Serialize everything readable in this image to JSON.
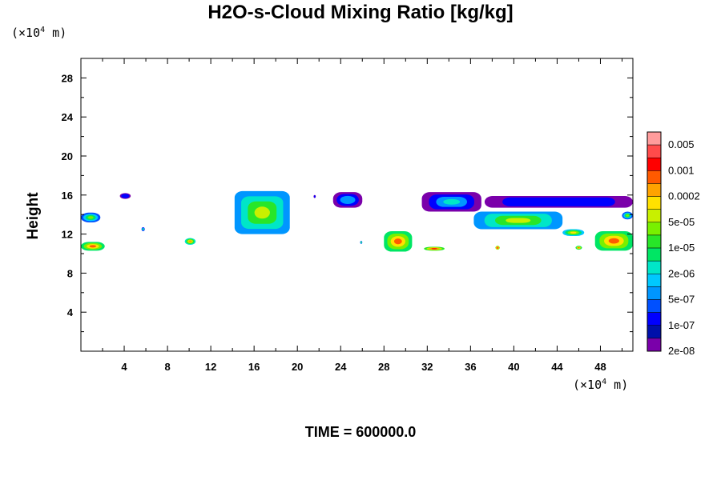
{
  "chart_data": {
    "type": "heatmap",
    "title": "H2O-s-Cloud Mixing Ratio [kg/kg]",
    "ylabel": "Height",
    "x_unit": {
      "prefix": "(×10",
      "exp": "4",
      "suffix": " m)"
    },
    "y_unit": {
      "prefix": "(×10",
      "exp": "4",
      "suffix": " m)"
    },
    "xlim": [
      0,
      51
    ],
    "ylim": [
      0,
      30
    ],
    "x_ticks": [
      4,
      8,
      12,
      16,
      20,
      24,
      28,
      32,
      36,
      40,
      44,
      48
    ],
    "x_tick_labels": [
      "4",
      "8",
      "12",
      "16",
      "20",
      "24",
      "28",
      "32",
      "36",
      "40",
      "44",
      "48"
    ],
    "y_ticks": [
      4,
      8,
      12,
      16,
      20,
      24,
      28
    ],
    "y_tick_labels": [
      "4",
      "8",
      "12",
      "16",
      "20",
      "24",
      "28"
    ],
    "colorbar": {
      "colors": [
        "#ff9c9c",
        "#ff4b4b",
        "#ff0000",
        "#ff5a00",
        "#ffa300",
        "#ffe100",
        "#c8f000",
        "#78f000",
        "#28e628",
        "#00e664",
        "#00e6c8",
        "#00c8ff",
        "#0096ff",
        "#0050ff",
        "#0000ff",
        "#0010aa",
        "#7a00aa"
      ],
      "labels": [
        {
          "text": "0.005",
          "index": 1
        },
        {
          "text": "0.001",
          "index": 3
        },
        {
          "text": "0.0002",
          "index": 5
        },
        {
          "text": "5e-05",
          "index": 7
        },
        {
          "text": "1e-05",
          "index": 9
        },
        {
          "text": "2e-06",
          "index": 11
        },
        {
          "text": "5e-07",
          "index": 13
        },
        {
          "text": "1e-07",
          "index": 15
        },
        {
          "text": "2e-08",
          "index": 17
        }
      ]
    },
    "clouds": [
      {
        "xmin": 0,
        "xmax": 1.8,
        "ymin": 13.2,
        "ymax": 14.2,
        "level": 10
      },
      {
        "xmin": 0,
        "xmax": 2.2,
        "ymin": 10.3,
        "ymax": 11.2,
        "level": 6
      },
      {
        "xmin": 3.6,
        "xmax": 4.6,
        "ymin": 15.6,
        "ymax": 16.2,
        "level": 15
      },
      {
        "xmin": 5.6,
        "xmax": 5.9,
        "ymin": 12.3,
        "ymax": 12.7,
        "level": 11
      },
      {
        "xmin": 9.6,
        "xmax": 10.6,
        "ymin": 10.9,
        "ymax": 11.6,
        "level": 7
      },
      {
        "xmin": 14.2,
        "xmax": 19.3,
        "ymin": 12.0,
        "ymax": 16.4,
        "level": 9
      },
      {
        "xmin": 21.5,
        "xmax": 21.7,
        "ymin": 15.7,
        "ymax": 16.0,
        "level": 15
      },
      {
        "xmin": 23.3,
        "xmax": 26.0,
        "ymin": 14.7,
        "ymax": 16.3,
        "level": 14
      },
      {
        "xmin": 25.8,
        "xmax": 26.0,
        "ymin": 11.0,
        "ymax": 11.3,
        "level": 10
      },
      {
        "xmin": 28.0,
        "xmax": 30.6,
        "ymin": 10.2,
        "ymax": 12.3,
        "level": 6
      },
      {
        "xmin": 31.7,
        "xmax": 33.6,
        "ymin": 10.3,
        "ymax": 10.7,
        "level": 5
      },
      {
        "xmin": 31.5,
        "xmax": 37.0,
        "ymin": 14.3,
        "ymax": 16.3,
        "level": 13
      },
      {
        "xmin": 36.3,
        "xmax": 44.5,
        "ymin": 12.5,
        "ymax": 14.3,
        "level": 9
      },
      {
        "xmin": 37.3,
        "xmax": 51,
        "ymin": 14.7,
        "ymax": 15.9,
        "level": 15
      },
      {
        "xmin": 38.3,
        "xmax": 38.7,
        "ymin": 10.4,
        "ymax": 10.8,
        "level": 4
      },
      {
        "xmin": 44.5,
        "xmax": 46.5,
        "ymin": 11.8,
        "ymax": 12.5,
        "level": 8
      },
      {
        "xmin": 45.7,
        "xmax": 46.3,
        "ymin": 10.4,
        "ymax": 10.8,
        "level": 6
      },
      {
        "xmin": 47.5,
        "xmax": 51,
        "ymin": 10.3,
        "ymax": 12.3,
        "level": 6
      },
      {
        "xmin": 50.0,
        "xmax": 51,
        "ymin": 13.5,
        "ymax": 14.3,
        "level": 10
      }
    ]
  },
  "footer": {
    "time_text": "TIME = 600000.0"
  }
}
